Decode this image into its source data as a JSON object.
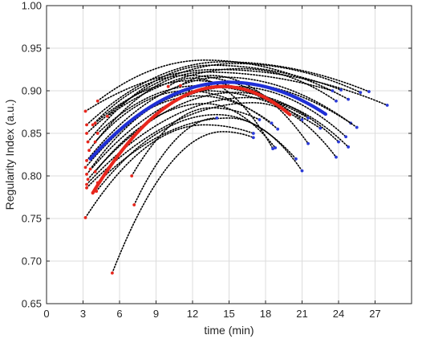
{
  "chart_data": {
    "type": "line",
    "title": "",
    "xlabel": "time (min)",
    "ylabel": "Regularity Index (a.u.)",
    "xlim": [
      0,
      30
    ],
    "ylim": [
      0.65,
      1.0
    ],
    "xticks": [
      0,
      3,
      6,
      9,
      12,
      15,
      18,
      21,
      24,
      27
    ],
    "xtick_labels": [
      "0",
      "3",
      "6",
      "9",
      "12",
      "15",
      "18",
      "21",
      "24",
      "27"
    ],
    "yticks": [
      0.65,
      0.7,
      0.75,
      0.8,
      0.85,
      0.9,
      0.95,
      1.0
    ],
    "ytick_labels": [
      "0.65",
      "0.70",
      "0.75",
      "0.80",
      "0.85",
      "0.90",
      "0.95",
      "1.00"
    ],
    "grid": true,
    "colors": {
      "individual_fit": "#000000",
      "mean_red": "#e8261c",
      "mean_blue": "#1f2fd6",
      "start_marker": "#e8261c",
      "end_marker": "#2a3ad8",
      "grid": "#dcdcdc"
    },
    "series": [
      {
        "style": "individual",
        "start": 3.2,
        "end": 28.0,
        "y_start": 0.876,
        "y_peak": 0.925,
        "t_peak": 14.0,
        "y_end": 0.883
      },
      {
        "style": "individual",
        "start": 3.3,
        "end": 26.5,
        "y_start": 0.86,
        "y_peak": 0.934,
        "t_peak": 14.5,
        "y_end": 0.899
      },
      {
        "style": "individual",
        "start": 3.3,
        "end": 25.8,
        "y_start": 0.85,
        "y_peak": 0.932,
        "t_peak": 15.5,
        "y_end": 0.898
      },
      {
        "style": "individual",
        "start": 4.2,
        "end": 24.8,
        "y_start": 0.888,
        "y_peak": 0.936,
        "t_peak": 13.0,
        "y_end": 0.89
      },
      {
        "style": "individual",
        "start": 3.4,
        "end": 24.2,
        "y_start": 0.84,
        "y_peak": 0.93,
        "t_peak": 13.5,
        "y_end": 0.901
      },
      {
        "style": "individual",
        "start": 3.5,
        "end": 23.5,
        "y_start": 0.83,
        "y_peak": 0.922,
        "t_peak": 13.0,
        "y_end": 0.9
      },
      {
        "style": "individual",
        "start": 3.3,
        "end": 25.0,
        "y_start": 0.818,
        "y_peak": 0.916,
        "t_peak": 14.5,
        "y_end": 0.862
      },
      {
        "style": "individual",
        "start": 3.2,
        "end": 25.5,
        "y_start": 0.81,
        "y_peak": 0.91,
        "t_peak": 15.0,
        "y_end": 0.857
      },
      {
        "style": "individual",
        "start": 3.3,
        "end": 24.6,
        "y_start": 0.802,
        "y_peak": 0.905,
        "t_peak": 15.5,
        "y_end": 0.846
      },
      {
        "style": "individual",
        "start": 3.4,
        "end": 24.0,
        "y_start": 0.796,
        "y_peak": 0.898,
        "t_peak": 15.5,
        "y_end": 0.84
      },
      {
        "style": "individual",
        "start": 3.3,
        "end": 24.8,
        "y_start": 0.79,
        "y_peak": 0.892,
        "t_peak": 16.5,
        "y_end": 0.834
      },
      {
        "style": "individual",
        "start": 3.3,
        "end": 23.8,
        "y_start": 0.786,
        "y_peak": 0.886,
        "t_peak": 17.0,
        "y_end": 0.822
      },
      {
        "style": "individual",
        "start": 3.6,
        "end": 22.5,
        "y_start": 0.808,
        "y_peak": 0.9,
        "t_peak": 13.0,
        "y_end": 0.856
      },
      {
        "style": "individual",
        "start": 3.8,
        "end": 21.0,
        "y_start": 0.86,
        "y_peak": 0.918,
        "t_peak": 11.5,
        "y_end": 0.866
      },
      {
        "style": "individual",
        "start": 4.0,
        "end": 20.0,
        "y_start": 0.862,
        "y_peak": 0.912,
        "t_peak": 12.0,
        "y_end": 0.872
      },
      {
        "style": "individual",
        "start": 4.2,
        "end": 21.5,
        "y_start": 0.85,
        "y_peak": 0.906,
        "t_peak": 12.5,
        "y_end": 0.868
      },
      {
        "style": "individual",
        "start": 4.0,
        "end": 19.0,
        "y_start": 0.84,
        "y_peak": 0.9,
        "t_peak": 11.5,
        "y_end": 0.855
      },
      {
        "style": "individual",
        "start": 4.2,
        "end": 18.5,
        "y_start": 0.83,
        "y_peak": 0.894,
        "t_peak": 12.5,
        "y_end": 0.862
      },
      {
        "style": "individual",
        "start": 4.0,
        "end": 18.8,
        "y_start": 0.805,
        "y_peak": 0.885,
        "t_peak": 13.0,
        "y_end": 0.833
      },
      {
        "style": "individual",
        "start": 4.1,
        "end": 20.5,
        "y_start": 0.782,
        "y_peak": 0.872,
        "t_peak": 14.0,
        "y_end": 0.82
      },
      {
        "style": "individual",
        "start": 4.2,
        "end": 21.0,
        "y_start": 0.792,
        "y_peak": 0.868,
        "t_peak": 15.0,
        "y_end": 0.806
      },
      {
        "style": "individual",
        "start": 3.2,
        "end": 17.0,
        "y_start": 0.751,
        "y_peak": 0.86,
        "t_peak": 13.0,
        "y_end": 0.85
      },
      {
        "style": "individual",
        "start": 5.4,
        "end": 17.0,
        "y_start": 0.686,
        "y_peak": 0.852,
        "t_peak": 14.5,
        "y_end": 0.845
      },
      {
        "style": "individual",
        "start": 7.2,
        "end": 14.0,
        "y_start": 0.766,
        "y_peak": 0.868,
        "t_peak": 14.0,
        "y_end": 0.868
      },
      {
        "style": "individual",
        "start": 7.0,
        "end": 17.5,
        "y_start": 0.8,
        "y_peak": 0.88,
        "t_peak": 13.5,
        "y_end": 0.866
      },
      {
        "style": "individual",
        "start": 10.0,
        "end": 18.6,
        "y_start": 0.905,
        "y_peak": 0.915,
        "t_peak": 12.0,
        "y_end": 0.832
      },
      {
        "style": "individual",
        "start": 11.0,
        "end": 21.5,
        "y_start": 0.906,
        "y_peak": 0.918,
        "t_peak": 13.5,
        "y_end": 0.838
      },
      {
        "style": "individual",
        "start": 5.0,
        "end": 23.8,
        "y_start": 0.87,
        "y_peak": 0.926,
        "t_peak": 16.0,
        "y_end": 0.888
      },
      {
        "style": "mean_red",
        "start": 3.8,
        "end": 20.0,
        "y_start": 0.78,
        "y_peak": 0.905,
        "t_peak": 14.5,
        "y_end": 0.872
      },
      {
        "style": "mean_blue",
        "start": 3.6,
        "end": 23.0,
        "y_start": 0.82,
        "y_peak": 0.91,
        "t_peak": 15.0,
        "y_end": 0.872
      }
    ]
  }
}
